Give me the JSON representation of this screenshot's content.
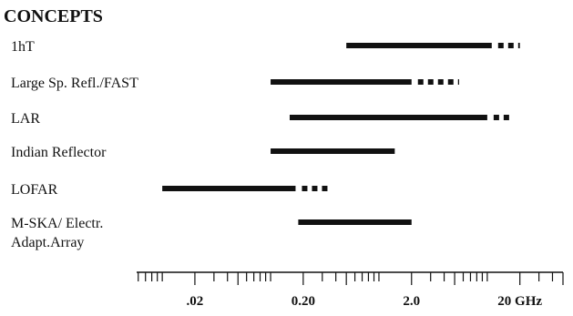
{
  "chart_data": {
    "type": "bar",
    "title": "CONCEPTS",
    "x_scale": "log",
    "xlim": [
      0.0058,
      50
    ],
    "ticks": [
      {
        "value": 0.02,
        "label": ".02"
      },
      {
        "value": 0.2,
        "label": "0.20"
      },
      {
        "value": 2.0,
        "label": "2.0"
      },
      {
        "value": 20,
        "label": "20 GHz"
      }
    ],
    "series": [
      {
        "label_lines": [
          "1hT"
        ],
        "solid": [
          0.5,
          11
        ],
        "dashed_to": 20
      },
      {
        "label_lines": [
          "Large Sp. Refl./FAST"
        ],
        "solid": [
          0.1,
          2.0
        ],
        "dashed_to": 5.5
      },
      {
        "label_lines": [
          "LAR"
        ],
        "solid": [
          0.15,
          10
        ],
        "dashed_to": 16
      },
      {
        "label_lines": [
          "Indian Reflector"
        ],
        "solid": [
          0.1,
          1.4
        ],
        "dashed_to": null
      },
      {
        "label_lines": [
          "LOFAR"
        ],
        "solid": [
          0.01,
          0.17
        ],
        "dashed_to": 0.35
      },
      {
        "label_lines": [
          "M-SKA/ Electr.",
          "Adapt.Array"
        ],
        "solid": [
          0.18,
          2.0
        ],
        "dashed_to": null
      }
    ]
  }
}
